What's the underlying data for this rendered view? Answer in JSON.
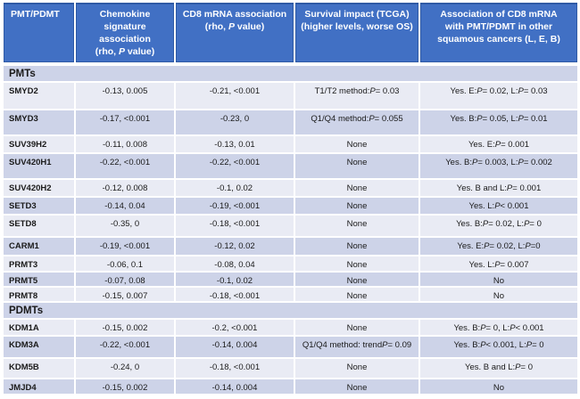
{
  "colors": {
    "header_bg": "#4170c4",
    "header_border": "#2f5aa5",
    "header_text": "#ffffff",
    "row_dark": "#cdd3e8",
    "row_light": "#e9ebf4",
    "grid": "#ffffff",
    "text": "#1a1a1a"
  },
  "table": {
    "columns": [
      "PMT/PDMT",
      "Chemokine\nsignature\nassociation\n(rho, P value)",
      "CD8 mRNA association\n(rho, P value)",
      "Survival impact  (TCGA)\n(higher levels, worse OS)",
      "Association of CD8 mRNA\nwith PMT/PDMT in other\nsquamous cancers (L, E, B)"
    ],
    "rows": [
      {
        "type": "section",
        "label": "PMTs"
      },
      {
        "type": "data",
        "gene": "SMYD2",
        "chemokine": "-0.13, 0.005",
        "cd8": "-0.21, <0.001",
        "survival": "T1/T2 method: P = 0.03",
        "other": "Yes. E: P = 0.02, L: P = 0.03"
      },
      {
        "type": "data",
        "gene": "SMYD3",
        "chemokine": "-0.17, <0.001",
        "cd8": "-0.23, 0",
        "survival": "Q1/Q4 method: P = 0.055",
        "other": "Yes. B: P = 0.05, L: P = 0.01"
      },
      {
        "type": "data",
        "gene": "SUV39H2",
        "chemokine": "-0.11, 0.008",
        "cd8": "-0.13, 0.01",
        "survival": "None",
        "other": "Yes. E: P = 0.001"
      },
      {
        "type": "data",
        "gene": "SUV420H1",
        "chemokine": "-0.22, <0.001",
        "cd8": "-0.22, <0.001",
        "survival": "None",
        "other": "Yes. B: P = 0.003, L: P = 0.002"
      },
      {
        "type": "data",
        "gene": "SUV420H2",
        "chemokine": "-0.12, 0.008",
        "cd8": "-0.1, 0.02",
        "survival": "None",
        "other": "Yes. B and L: P = 0.001"
      },
      {
        "type": "data",
        "gene": "SETD3",
        "chemokine": "-0.14, 0.04",
        "cd8": "-0.19, <0.001",
        "survival": "None",
        "other": "Yes. L: P < 0.001"
      },
      {
        "type": "data",
        "gene": "SETD8",
        "chemokine": "-0.35, 0",
        "cd8": "-0.18, <0.001",
        "survival": "None",
        "other": "Yes. B: P = 0.02, L: P = 0"
      },
      {
        "type": "data",
        "gene": "CARM1",
        "chemokine": "-0.19, <0.001",
        "cd8": "-0.12, 0.02",
        "survival": "None",
        "other": "Yes. E: P = 0.02, L: P =0"
      },
      {
        "type": "data",
        "gene": "PRMT3",
        "chemokine": "-0.06, 0.1",
        "cd8": "-0.08, 0.04",
        "survival": "None",
        "other": "Yes. L: P = 0.007"
      },
      {
        "type": "data",
        "gene": "PRMT5",
        "chemokine": "-0.07, 0.08",
        "cd8": "-0.1, 0.02",
        "survival": "None",
        "other": "No"
      },
      {
        "type": "data",
        "gene": "PRMT8",
        "chemokine": "-0.15, 0.007",
        "cd8": "-0.18, <0.001",
        "survival": "None",
        "other": "No"
      },
      {
        "type": "section",
        "label": "PDMTs"
      },
      {
        "type": "data",
        "gene": "KDM1A",
        "chemokine": "-0.15, 0.002",
        "cd8": "-0.2, <0.001",
        "survival": "None",
        "other": "Yes. B: P = 0, L: P < 0.001"
      },
      {
        "type": "data",
        "gene": "KDM3A",
        "chemokine": "-0.22, <0.001",
        "cd8": "-0.14, 0.004",
        "survival": "Q1/Q4 method: trend P = 0.09",
        "other": "Yes. B: P < 0.001, L: P = 0"
      },
      {
        "type": "data",
        "gene": "KDM5B",
        "chemokine": "-0.24, 0",
        "cd8": "-0.18, <0.001",
        "survival": "None",
        "other": "Yes. B and L: P = 0"
      },
      {
        "type": "data",
        "gene": "JMJD4",
        "chemokine": "-0.15, 0.002",
        "cd8": "-0.14, 0.004",
        "survival": "None",
        "other": "No"
      }
    ]
  }
}
